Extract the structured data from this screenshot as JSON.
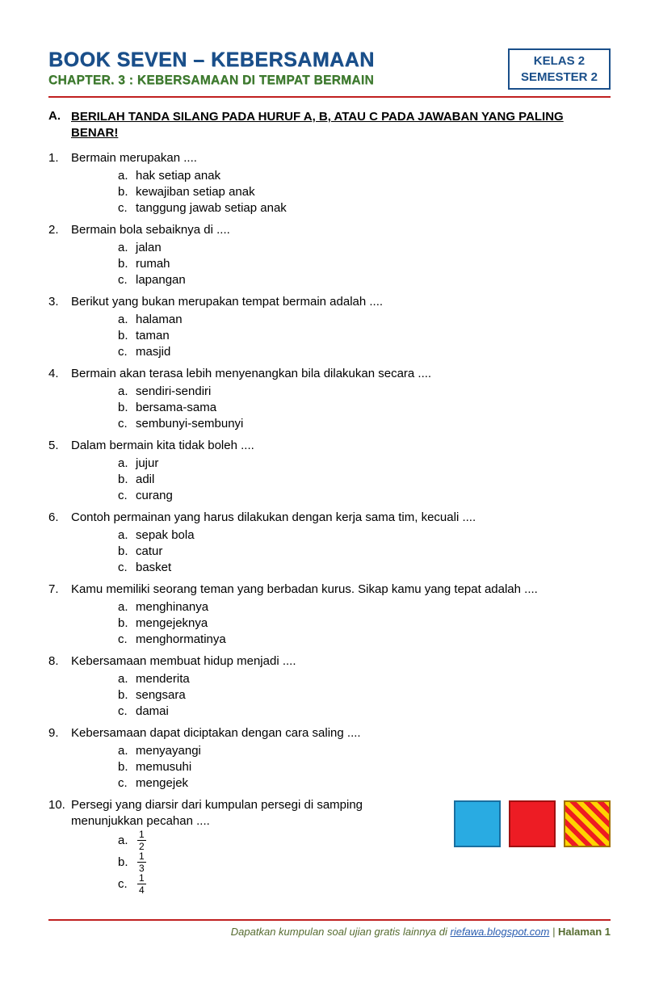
{
  "header": {
    "book_title": "BOOK SEVEN – KEBERSAMAAN",
    "chapter_line": "CHAPTER. 3 : KEBERSAMAAN DI TEMPAT BERMAIN",
    "class_line1": "KELAS 2",
    "class_line2": "SEMESTER 2",
    "title_color": "#1a4f8a",
    "chapter_color": "#3e7a2f",
    "rule_color": "#c02020"
  },
  "instruction": {
    "letter": "A.",
    "text": "BERILAH TANDA SILANG PADA HURUF A, B,  ATAU C PADA JAWABAN YANG PALING BENAR!"
  },
  "questions": [
    {
      "n": "1.",
      "q": "Bermain merupakan ....",
      "opts": [
        "hak setiap anak",
        "kewajiban setiap anak",
        "tanggung jawab setiap anak"
      ]
    },
    {
      "n": "2.",
      "q": "Bermain bola sebaiknya di ....",
      "opts": [
        "jalan",
        "rumah",
        "lapangan"
      ]
    },
    {
      "n": "3.",
      "q": "Berikut yang bukan merupakan tempat bermain adalah ....",
      "opts": [
        "halaman",
        "taman",
        "masjid"
      ]
    },
    {
      "n": "4.",
      "q": "Bermain akan terasa lebih menyenangkan bila dilakukan secara ....",
      "opts": [
        "sendiri-sendiri",
        "bersama-sama",
        "sembunyi-sembunyi"
      ]
    },
    {
      "n": "5.",
      "q": "Dalam bermain kita tidak boleh ....",
      "opts": [
        "jujur",
        "adil",
        "curang"
      ]
    },
    {
      "n": "6.",
      "q": "Contoh permainan yang harus dilakukan dengan kerja sama tim, kecuali ....",
      "opts": [
        "sepak bola",
        "catur",
        "basket"
      ]
    },
    {
      "n": "7.",
      "q": "Kamu memiliki seorang teman yang berbadan kurus. Sikap kamu yang tepat adalah ....",
      "opts": [
        "menghinanya",
        "mengejeknya",
        "menghormatinya"
      ]
    },
    {
      "n": "8.",
      "q": "Kebersamaan membuat hidup menjadi ....",
      "opts": [
        "menderita",
        "sengsara",
        "damai"
      ]
    },
    {
      "n": "9.",
      "q": "Kebersamaan dapat diciptakan dengan cara saling ....",
      "opts": [
        "menyayangi",
        "memusuhi",
        "mengejek"
      ]
    }
  ],
  "q10": {
    "n": "10.",
    "q": "Persegi yang diarsir dari kumpulan persegi di samping menunjukkan pecahan ....",
    "opts": [
      {
        "letter": "a.",
        "num": "1",
        "den": "2"
      },
      {
        "letter": "b.",
        "num": "1",
        "den": "3"
      },
      {
        "letter": "c.",
        "num": "1",
        "den": "4"
      }
    ],
    "squares": {
      "blue": {
        "fill": "#29abe2",
        "border": "#1a6fa0"
      },
      "red": {
        "fill": "#ed1c24",
        "border": "#a01010"
      },
      "stripe": {
        "c1": "#ffd400",
        "c2": "#ed1c24",
        "border": "#a07000"
      }
    }
  },
  "opt_letters": [
    "a.",
    "b.",
    "c."
  ],
  "footer": {
    "pretext": "Dapatkan kumpulan soal ujian gratis lainnya di ",
    "link": "riefawa.blogspot.com",
    "sep": " | ",
    "page_label": "Halaman  1"
  }
}
